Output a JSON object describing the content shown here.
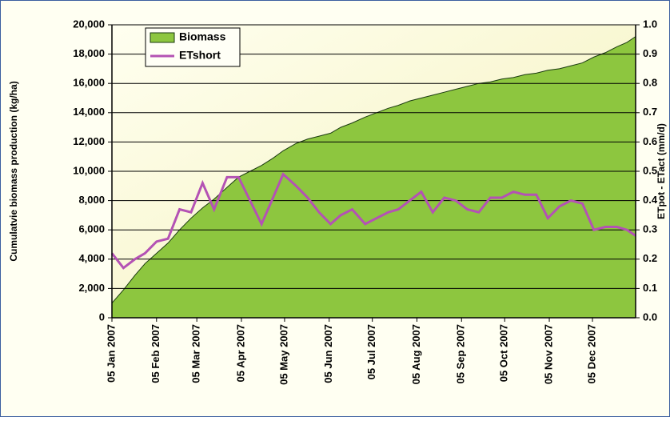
{
  "chart_data": {
    "type": "area-line",
    "ylabel": "Cumulatvie biomass production (kg/ha)",
    "y2label": "ETpot - ETact (mm/d)",
    "x": [
      0,
      8,
      16,
      23,
      31,
      39,
      47,
      55,
      63,
      71,
      80,
      88,
      96,
      104,
      112,
      119,
      128,
      136,
      144,
      152,
      159,
      167,
      176,
      184,
      192,
      199,
      207,
      215,
      223,
      231,
      239,
      247,
      255,
      263,
      271,
      279,
      287,
      295,
      303,
      311,
      319,
      327,
      335,
      343,
      351,
      358,
      364
    ],
    "xlim": [
      0,
      364
    ],
    "xticks": [
      {
        "value": 0,
        "label": "05 Jan 2007"
      },
      {
        "value": 31,
        "label": "05 Feb 2007"
      },
      {
        "value": 59,
        "label": "05 Mar 2007"
      },
      {
        "value": 90,
        "label": "05 Apr 2007"
      },
      {
        "value": 120,
        "label": "05 May 2007"
      },
      {
        "value": 151,
        "label": "05 Jun 2007"
      },
      {
        "value": 181,
        "label": "05 Jul 2007"
      },
      {
        "value": 212,
        "label": "05 Aug 2007"
      },
      {
        "value": 243,
        "label": "05 Sep 2007"
      },
      {
        "value": 273,
        "label": "05 Oct 2007"
      },
      {
        "value": 304,
        "label": "05 Nov 2007"
      },
      {
        "value": 334,
        "label": "05 Dec 2007"
      }
    ],
    "ylim": [
      0,
      20000
    ],
    "yticks": [
      0,
      {
        "value": 2000,
        "label": "2,000"
      },
      {
        "value": 4000,
        "label": "4,000"
      },
      {
        "value": 6000,
        "label": "6,000"
      },
      {
        "value": 8000,
        "label": "8,000"
      },
      {
        "value": 10000,
        "label": "10,000"
      },
      {
        "value": 12000,
        "label": "12,000"
      },
      {
        "value": 14000,
        "label": "14,000"
      },
      {
        "value": 16000,
        "label": "16,000"
      },
      {
        "value": 18000,
        "label": "18,000"
      },
      {
        "value": 20000,
        "label": "20,000"
      }
    ],
    "y2lim": [
      0,
      1
    ],
    "y2ticks": [
      {
        "value": 0,
        "label": "0.0"
      },
      0.1,
      0.2,
      0.3,
      0.4,
      0.5,
      0.6,
      0.7,
      0.8,
      0.9,
      {
        "value": 1,
        "label": "1.0"
      }
    ],
    "grid": true,
    "legend": "upper left",
    "series": [
      {
        "name": "Biomass",
        "kind": "area",
        "color": "#8dc63f",
        "values": [
          1000,
          1900,
          2900,
          3700,
          4400,
          5100,
          6000,
          6800,
          7500,
          8100,
          8900,
          9600,
          10000,
          10400,
          10900,
          11400,
          11900,
          12200,
          12400,
          12600,
          13000,
          13300,
          13700,
          14000,
          14300,
          14500,
          14800,
          15000,
          15200,
          15400,
          15600,
          15800,
          16000,
          16100,
          16300,
          16400,
          16600,
          16700,
          16900,
          17000,
          17200,
          17400,
          17800,
          18100,
          18500,
          18800,
          19200
        ]
      },
      {
        "name": "ETshort",
        "kind": "line",
        "axis": "y2",
        "color": "#b452b4",
        "values": [
          0.22,
          0.17,
          0.2,
          0.22,
          0.26,
          0.27,
          0.37,
          0.36,
          0.46,
          0.37,
          0.48,
          0.48,
          0.4,
          0.32,
          0.41,
          0.49,
          0.45,
          0.41,
          0.36,
          0.32,
          0.35,
          0.37,
          0.32,
          0.34,
          0.36,
          0.37,
          0.4,
          0.43,
          0.36,
          0.41,
          0.4,
          0.37,
          0.36,
          0.41,
          0.41,
          0.43,
          0.42,
          0.42,
          0.34,
          0.38,
          0.4,
          0.39,
          0.3,
          0.31,
          0.31,
          0.3,
          0.28
        ]
      }
    ]
  }
}
